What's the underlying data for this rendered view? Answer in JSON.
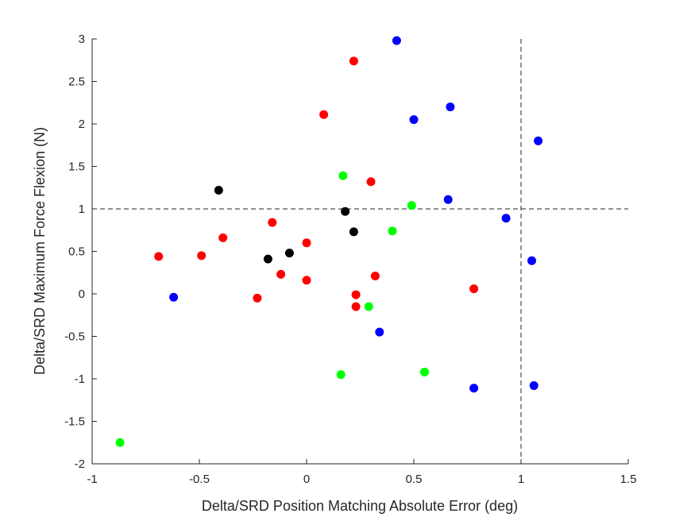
{
  "chart_data": {
    "type": "scatter",
    "title": "",
    "xlabel": "Delta/SRD Position Matching Absolute Error (deg)",
    "ylabel": "Delta/SRD Maximum Force Flexion (N)",
    "xlim": [
      -1,
      1.5
    ],
    "ylim": [
      -2,
      3
    ],
    "x_ticks": [
      -1,
      -0.5,
      0,
      0.5,
      1,
      1.5
    ],
    "x_tick_labels": [
      "-1",
      "-0.5",
      "0",
      "0.5",
      "1",
      "1.5"
    ],
    "y_ticks": [
      -2,
      -1.5,
      -1,
      -0.5,
      0,
      0.5,
      1,
      1.5,
      2,
      2.5,
      3
    ],
    "y_tick_labels": [
      "-2",
      "-1.5",
      "-1",
      "-0.5",
      "0",
      "0.5",
      "1",
      "1.5",
      "2",
      "2.5",
      "3"
    ],
    "grid": false,
    "reference_lines": {
      "x": 1,
      "y": 1,
      "style": "dashed"
    },
    "series": [
      {
        "color": "#0000ff",
        "points": [
          [
            0.42,
            2.98
          ],
          [
            0.67,
            2.2
          ],
          [
            0.5,
            2.05
          ],
          [
            1.08,
            1.8
          ],
          [
            0.66,
            1.11
          ],
          [
            0.93,
            0.89
          ],
          [
            1.05,
            0.39
          ],
          [
            -0.62,
            -0.04
          ],
          [
            0.34,
            -0.45
          ],
          [
            0.78,
            -1.11
          ],
          [
            1.06,
            -1.08
          ]
        ]
      },
      {
        "color": "#ff0000",
        "points": [
          [
            0.22,
            2.74
          ],
          [
            0.08,
            2.11
          ],
          [
            0.3,
            1.32
          ],
          [
            -0.16,
            0.84
          ],
          [
            -0.39,
            0.66
          ],
          [
            0.0,
            0.6
          ],
          [
            -0.69,
            0.44
          ],
          [
            -0.49,
            0.45
          ],
          [
            -0.12,
            0.23
          ],
          [
            0.0,
            0.16
          ],
          [
            0.32,
            0.21
          ],
          [
            -0.23,
            -0.05
          ],
          [
            0.23,
            -0.01
          ],
          [
            0.23,
            -0.15
          ],
          [
            0.78,
            0.06
          ]
        ]
      },
      {
        "color": "#00ff00",
        "points": [
          [
            0.17,
            1.39
          ],
          [
            0.49,
            1.04
          ],
          [
            0.4,
            0.74
          ],
          [
            0.29,
            -0.15
          ],
          [
            0.16,
            -0.95
          ],
          [
            0.55,
            -0.92
          ],
          [
            -0.87,
            -1.75
          ]
        ]
      },
      {
        "color": "#000000",
        "points": [
          [
            -0.41,
            1.22
          ],
          [
            0.18,
            0.97
          ],
          [
            0.22,
            0.73
          ],
          [
            -0.18,
            0.41
          ],
          [
            -0.08,
            0.48
          ]
        ]
      }
    ]
  }
}
